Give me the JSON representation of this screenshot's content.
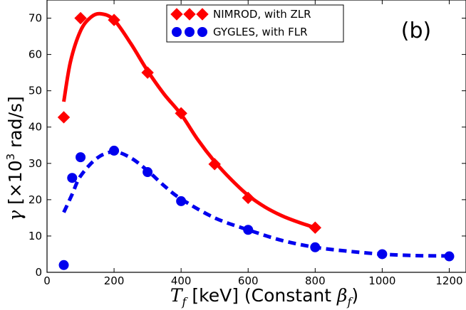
{
  "chart_data": {
    "type": "line",
    "panel_label": "(b)",
    "xlabel": {
      "symbol": "T",
      "subscript": "f",
      "text": " [keV] (Constant ",
      "symbol2": "β",
      "subscript2": "f",
      "close": ")"
    },
    "ylabel": {
      "symbol": "γ",
      "text_open": " [×10",
      "superscript": "3",
      "text_close": " rad/s]"
    },
    "xlim": [
      0,
      1250
    ],
    "ylim": [
      0,
      75
    ],
    "xticks": [
      0,
      200,
      400,
      600,
      800,
      1000,
      1200
    ],
    "yticks": [
      0,
      10,
      20,
      30,
      40,
      50,
      60,
      70
    ],
    "legend_position": "top-center",
    "series": [
      {
        "name": "NIMROD, with ZLR",
        "color": "#ff0000",
        "marker": "diamond",
        "line_style": "solid",
        "points": {
          "x": [
            50,
            100,
            200,
            300,
            400,
            500,
            600,
            800
          ],
          "y": [
            42.7,
            70,
            69.5,
            55,
            43.8,
            29.8,
            20.5,
            12.3
          ]
        },
        "fit": {
          "x": [
            50,
            70,
            100,
            130,
            160,
            200,
            250,
            300,
            350,
            400,
            450,
            500,
            550,
            600,
            650,
            700,
            750,
            800
          ],
          "y": [
            47,
            58,
            66.5,
            70.2,
            71.2,
            69.5,
            63,
            55.5,
            49,
            43.5,
            36.5,
            30.5,
            25.5,
            21.2,
            18,
            15.6,
            13.8,
            12.3
          ]
        }
      },
      {
        "name": "GYGLES, with FLR",
        "color": "#0000ee",
        "marker": "circle",
        "line_style": "dashed",
        "points": {
          "x": [
            50,
            75,
            100,
            200,
            300,
            400,
            600,
            800,
            1000,
            1200
          ],
          "y": [
            2,
            26,
            31.7,
            33.5,
            27.6,
            19.6,
            11.7,
            6.9,
            5,
            4.4
          ]
        },
        "fit": {
          "x": [
            50,
            75,
            100,
            150,
            200,
            250,
            300,
            350,
            400,
            500,
            600,
            700,
            800,
            900,
            1000,
            1100,
            1200
          ],
          "y": [
            16.5,
            21.5,
            26.5,
            31.5,
            33.2,
            31.5,
            28,
            23.8,
            20.2,
            15,
            11.7,
            8.8,
            6.9,
            5.8,
            5,
            4.6,
            4.5
          ]
        }
      }
    ]
  }
}
